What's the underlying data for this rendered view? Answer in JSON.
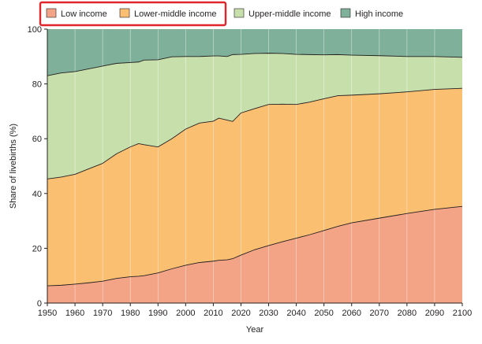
{
  "chart_data": {
    "type": "area",
    "stacked": true,
    "xlabel": "Year",
    "ylabel": "Share of livebirths (%)",
    "xlim": [
      1950,
      2100
    ],
    "ylim": [
      0,
      100
    ],
    "xticks": [
      1950,
      1960,
      1970,
      1980,
      1990,
      2000,
      2010,
      2020,
      2030,
      2040,
      2050,
      2060,
      2070,
      2080,
      2090,
      2100
    ],
    "yticks": [
      0,
      20,
      40,
      60,
      80,
      100
    ],
    "grid": {
      "x": true,
      "y": false
    },
    "legend_position": "top-left, above the plot",
    "legend_highlight_color": "#e0262b",
    "x": [
      1950,
      1955,
      1960,
      1965,
      1970,
      1975,
      1980,
      1983,
      1985,
      1990,
      1995,
      2000,
      2005,
      2010,
      2012,
      2015,
      2017,
      2020,
      2025,
      2030,
      2035,
      2040,
      2045,
      2050,
      2055,
      2060,
      2070,
      2080,
      2090,
      2100
    ],
    "series": [
      {
        "name": "Low income",
        "color": "#f4a486",
        "values": [
          6.3,
          6.5,
          6.9,
          7.4,
          8.0,
          9.0,
          9.6,
          9.8,
          10.0,
          11.0,
          12.5,
          13.8,
          14.8,
          15.3,
          15.6,
          15.8,
          16.2,
          17.5,
          19.5,
          21.0,
          22.4,
          23.7,
          25.0,
          26.5,
          28.0,
          29.3,
          31.0,
          32.7,
          34.2,
          35.3
        ]
      },
      {
        "name": "Lower-middle income",
        "color": "#fbbf72",
        "values": [
          39.0,
          39.5,
          40.1,
          41.6,
          43.0,
          45.5,
          47.4,
          48.4,
          47.8,
          46.0,
          47.5,
          49.7,
          50.9,
          51.1,
          51.9,
          51.0,
          50.1,
          51.9,
          51.5,
          51.5,
          50.2,
          48.8,
          48.4,
          48.1,
          47.7,
          46.6,
          45.4,
          44.4,
          43.8,
          43.1
        ]
      },
      {
        "name": "Upper-middle income",
        "color": "#c7e0ab",
        "values": [
          37.7,
          38.0,
          37.5,
          36.5,
          35.5,
          33.0,
          30.8,
          29.8,
          30.9,
          31.8,
          29.9,
          26.5,
          24.3,
          23.8,
          22.7,
          23.2,
          24.4,
          21.4,
          20.1,
          18.7,
          18.5,
          18.3,
          17.3,
          16.0,
          15.0,
          14.6,
          13.9,
          12.9,
          12.0,
          11.3
        ]
      },
      {
        "name": "High income",
        "color": "#7fb09a",
        "values": [
          17.0,
          16.0,
          15.5,
          14.5,
          13.5,
          12.5,
          12.2,
          12.0,
          11.3,
          11.2,
          10.1,
          10.0,
          10.0,
          9.8,
          9.8,
          10.0,
          9.3,
          9.2,
          8.9,
          8.8,
          8.9,
          9.2,
          9.3,
          9.4,
          9.3,
          9.5,
          9.7,
          10.0,
          10.0,
          10.3
        ]
      }
    ]
  }
}
